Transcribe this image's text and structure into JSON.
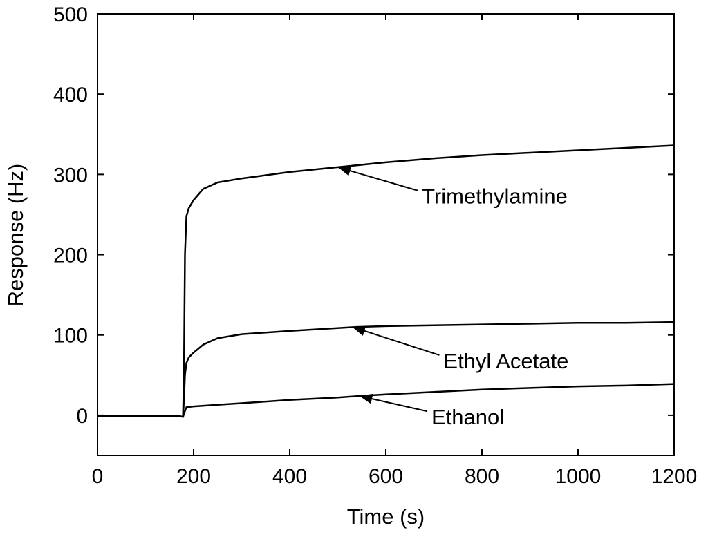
{
  "chart_data": {
    "type": "line",
    "title": "",
    "xlabel": "Time (s)",
    "ylabel": "Response (Hz)",
    "xlim": [
      0,
      1200
    ],
    "ylim": [
      -50,
      500
    ],
    "xticks": [
      0,
      200,
      400,
      600,
      800,
      1000,
      1200
    ],
    "yticks": [
      0,
      100,
      200,
      300,
      400,
      500
    ],
    "grid": false,
    "legend": "none",
    "series": [
      {
        "name": "Trimethylamine",
        "color": "#000000",
        "x": [
          0,
          50,
          100,
          150,
          170,
          178,
          180,
          182,
          185,
          190,
          200,
          220,
          250,
          300,
          400,
          500,
          600,
          700,
          800,
          900,
          1000,
          1100,
          1200
        ],
        "y": [
          -1,
          -1,
          -1,
          -1,
          -1,
          -2,
          60,
          200,
          248,
          258,
          268,
          282,
          290,
          295,
          303,
          309,
          315,
          320,
          324,
          327,
          330,
          333,
          336
        ]
      },
      {
        "name": "Ethyl Acetate",
        "color": "#000000",
        "x": [
          0,
          50,
          100,
          150,
          170,
          178,
          180,
          182,
          185,
          190,
          200,
          220,
          250,
          300,
          400,
          540,
          600,
          700,
          800,
          900,
          1000,
          1100,
          1200
        ],
        "y": [
          -1,
          -1,
          -1,
          -1,
          -1,
          -2,
          20,
          50,
          65,
          72,
          78,
          88,
          96,
          101,
          105,
          110,
          111,
          112,
          113,
          114,
          115,
          115,
          116
        ]
      },
      {
        "name": "Ethanol",
        "color": "#000000",
        "x": [
          0,
          50,
          100,
          150,
          170,
          178,
          180,
          185,
          200,
          250,
          300,
          400,
          500,
          545,
          600,
          700,
          800,
          900,
          1000,
          1100,
          1200
        ],
        "y": [
          -1,
          -1,
          -1,
          -1,
          -1,
          -2,
          2,
          10,
          11,
          13,
          15,
          19,
          22,
          24,
          26,
          29,
          32,
          34,
          36,
          37,
          39
        ]
      }
    ],
    "annotations": [
      {
        "text": "Trimethylamine",
        "target_x": 500,
        "target_y": 309,
        "label_x": 675,
        "label_y": 273
      },
      {
        "text": "Ethyl Acetate",
        "target_x": 530,
        "target_y": 110,
        "label_x": 720,
        "label_y": 68
      },
      {
        "text": "Ethanol",
        "target_x": 545,
        "target_y": 24,
        "label_x": 695,
        "label_y": -2
      }
    ]
  }
}
